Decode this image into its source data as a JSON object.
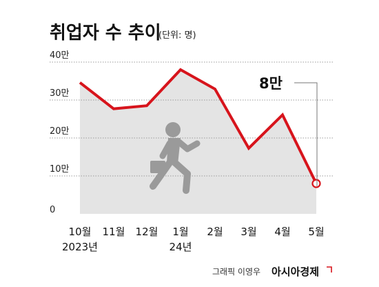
{
  "title": "취업자 수 추이",
  "unit_note": "(단위: 명)",
  "callout_label": "8만",
  "credit": "그래픽 이영우",
  "brand": "아시아경제",
  "colors": {
    "line": "#d7141c",
    "area": "#e4e4e4",
    "figure": "#9a9a9a",
    "grid": "#9a9a9a"
  },
  "icons": {
    "figure": "running-person-with-briefcase-icon",
    "brand": "brand-mark-icon"
  },
  "chart_data": {
    "type": "line",
    "title": "취업자 수 추이",
    "unit": "(단위: 명)",
    "categories": [
      "10월",
      "11월",
      "12월",
      "1월",
      "2월",
      "3월",
      "4월",
      "5월"
    ],
    "category_sublabels": [
      "2023년",
      "",
      "",
      "24년",
      "",
      "",
      "",
      ""
    ],
    "series": [
      {
        "values": [
          346000,
          277000,
          285000,
          380000,
          329000,
          173000,
          261000,
          80000
        ]
      }
    ],
    "ylim": [
      0,
      400000
    ],
    "yticks": [
      0,
      100000,
      200000,
      300000,
      400000
    ],
    "ytick_labels": [
      "0",
      "10만",
      "20만",
      "30만",
      "40만"
    ],
    "grid": true,
    "fill_under_line": true,
    "annotation": {
      "text": "8만",
      "category": "5월"
    }
  }
}
